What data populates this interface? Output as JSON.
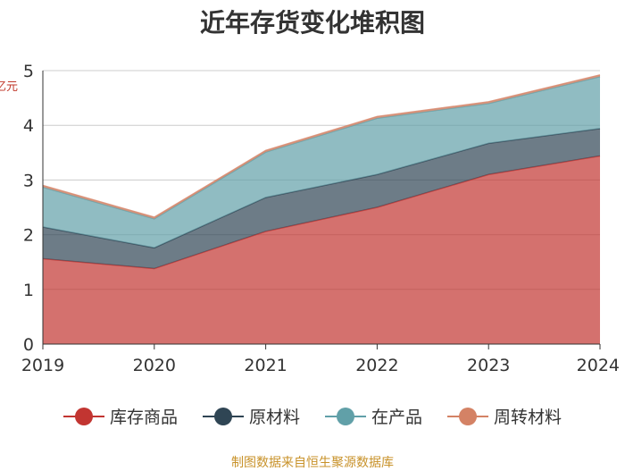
{
  "source_note": "制图数据来自恒生聚源数据库",
  "chart_data": {
    "type": "area",
    "stacked": true,
    "title": "近年存货变化堆积图",
    "xlabel": "",
    "ylabel": "亿元",
    "categories": [
      "2019",
      "2020",
      "2021",
      "2022",
      "2023",
      "2024"
    ],
    "ylim": [
      0,
      5
    ],
    "yticks": [
      0,
      1,
      2,
      3,
      4,
      5
    ],
    "grid": true,
    "legend_position": "bottom",
    "series": [
      {
        "name": "库存商品",
        "color": "#c23531",
        "values": [
          1.56,
          1.38,
          2.06,
          2.5,
          3.1,
          3.44
        ]
      },
      {
        "name": "原材料",
        "color": "#2f4554",
        "values": [
          0.58,
          0.38,
          0.62,
          0.6,
          0.57,
          0.5
        ]
      },
      {
        "name": "在产品",
        "color": "#61a0a8",
        "values": [
          0.73,
          0.53,
          0.83,
          1.03,
          0.73,
          0.95
        ]
      },
      {
        "name": "周转材料",
        "color": "#d48265",
        "values": [
          0.03,
          0.03,
          0.03,
          0.03,
          0.03,
          0.03
        ]
      }
    ]
  }
}
